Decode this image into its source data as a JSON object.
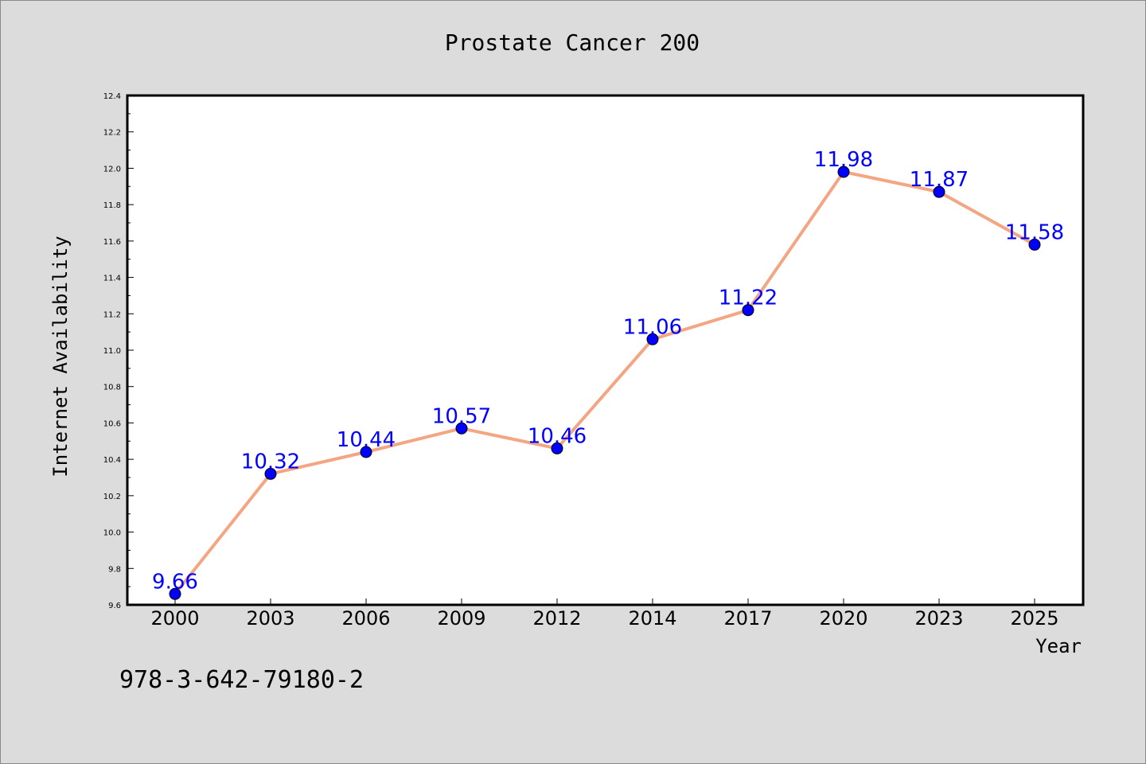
{
  "footnote": "978-3-642-79180-2",
  "colors": {
    "background": "#dcdcdc",
    "plot_bg": "#ffffff",
    "line": "#f4a582",
    "marker": "#0000ff",
    "label": "#0000ff"
  },
  "chart_data": {
    "type": "line",
    "title": "Prostate Cancer 200",
    "xlabel": "Year",
    "ylabel": "Internet Availability",
    "categories": [
      "2000",
      "2003",
      "2006",
      "2009",
      "2012",
      "2014",
      "2017",
      "2020",
      "2023",
      "2025"
    ],
    "values": [
      9.66,
      10.32,
      10.44,
      10.57,
      10.46,
      11.06,
      11.22,
      11.98,
      11.87,
      11.58
    ],
    "value_labels": [
      "9.66",
      "10.32",
      "10.44",
      "10.57",
      "10.46",
      "11.06",
      "11.22",
      "11.98",
      "11.87",
      "11.58"
    ],
    "ylim": [
      9.6,
      12.4
    ],
    "yticks": [
      "9.6",
      "9.8",
      "10.0",
      "10.2",
      "10.4",
      "10.6",
      "10.8",
      "11.0",
      "11.2",
      "11.4",
      "11.6",
      "11.8",
      "12.0",
      "12.2",
      "12.4"
    ],
    "grid": false,
    "legend": "none"
  }
}
